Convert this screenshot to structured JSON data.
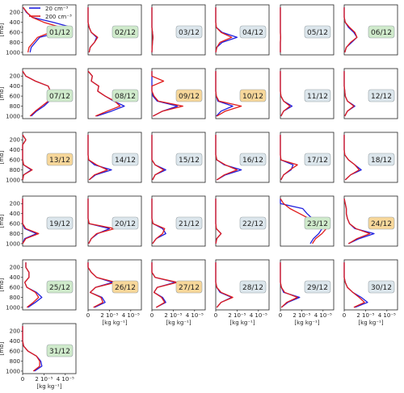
{
  "figure": {
    "legend": [
      {
        "label": "20 cm⁻³",
        "color": "#1f1fdf"
      },
      {
        "label": "200 cm⁻³",
        "color": "#e01c1c"
      }
    ],
    "ylabel": "[mb]",
    "xlabel": "[kg kg⁻¹]",
    "yticks": [
      "200",
      "400",
      "600",
      "800",
      "1000"
    ],
    "xticks": [
      "0",
      "2 10⁻⁵",
      "4 10⁻⁵"
    ]
  },
  "chart_data": {
    "type": "line",
    "xlabel": "[kg kg-1]",
    "ylabel": "[mb]",
    "xlim": [
      0,
      5e-05
    ],
    "ylim": [
      1050,
      50
    ],
    "yticks": [
      200,
      400,
      600,
      800,
      1000
    ],
    "xticks": [
      0,
      2e-05,
      4e-05
    ],
    "pressure_levels": [
      100,
      200,
      300,
      400,
      500,
      600,
      700,
      800,
      900,
      1000
    ],
    "series_names": [
      "20 cm-3",
      "200 cm-3"
    ],
    "badge_colors": {
      "green": "#cfeacb",
      "blue": "#dce6ec",
      "orange": "#f7d79a"
    },
    "panels": [
      {
        "date": "01/12",
        "badge": "green",
        "s20": [
          0.05,
          0.35,
          0.9,
          2.9,
          4.6,
          3.4,
          1.6,
          1.2,
          0.8,
          0.7
        ],
        "s200": [
          0.05,
          0.4,
          0.9,
          2.0,
          3.6,
          2.6,
          1.4,
          1.0,
          0.6,
          0.5
        ]
      },
      {
        "date": "02/12",
        "badge": "green",
        "s20": [
          0,
          0,
          0,
          0,
          0.1,
          0.3,
          0.8,
          0.6,
          0.2,
          0.1
        ],
        "s200": [
          0,
          0,
          0,
          0,
          0.1,
          0.3,
          0.9,
          0.6,
          0.2,
          0.1
        ]
      },
      {
        "date": "03/12",
        "badge": "blue",
        "s20": [
          0,
          0,
          0,
          0,
          0,
          0.05,
          0.1,
          0.05,
          0.02,
          0
        ],
        "s200": [
          0,
          0,
          0,
          0,
          0,
          0.05,
          0.1,
          0.05,
          0.02,
          0
        ]
      },
      {
        "date": "04/12",
        "badge": "blue",
        "s20": [
          0,
          0,
          0,
          0,
          0.05,
          0.6,
          2.0,
          0.6,
          0.1,
          0
        ],
        "s200": [
          0,
          0,
          0,
          0,
          0.05,
          0.5,
          1.5,
          0.4,
          0.1,
          0
        ]
      },
      {
        "date": "05/12",
        "badge": "blue",
        "s20": [
          0,
          0,
          0,
          0,
          0,
          0,
          0.02,
          0,
          0,
          0
        ],
        "s200": [
          0,
          0,
          0,
          0,
          0,
          0,
          0.02,
          0,
          0,
          0
        ]
      },
      {
        "date": "06/12",
        "badge": "green",
        "s20": [
          0,
          0,
          0,
          0.1,
          0.4,
          0.9,
          1.2,
          0.7,
          0.2,
          0.05
        ],
        "s200": [
          0,
          0,
          0,
          0.1,
          0.5,
          1.0,
          1.2,
          0.6,
          0.2,
          0.05
        ]
      },
      {
        "date": "07/12",
        "badge": "green",
        "s20": [
          0,
          0.3,
          1.2,
          2.4,
          2.6,
          2.4,
          2.5,
          2.0,
          1.3,
          0.8
        ],
        "s200": [
          0,
          0.3,
          1.2,
          2.4,
          2.6,
          2.4,
          2.4,
          1.8,
          1.2,
          0.7
        ]
      },
      {
        "date": "08/12",
        "badge": "green",
        "s20": [
          0,
          0.4,
          0.3,
          1.0,
          0.9,
          1.6,
          2.4,
          3.4,
          2.2,
          0.8
        ],
        "s200": [
          0,
          0.4,
          0.3,
          1.0,
          0.9,
          1.6,
          2.5,
          3.0,
          1.8,
          0.7
        ]
      },
      {
        "date": "09/12",
        "badge": "orange",
        "s20": [
          0,
          0,
          0,
          0,
          0,
          0.1,
          0.5,
          2.4,
          1.0,
          0.1
        ],
        "s200": [
          0,
          0,
          1.1,
          0,
          0,
          0.2,
          0.6,
          2.9,
          1.0,
          0.1
        ]
      },
      {
        "date": "10/12",
        "badge": "orange",
        "s20": [
          0,
          0,
          0,
          0,
          0,
          0.05,
          0.2,
          1.6,
          0.5,
          0.05
        ],
        "s200": [
          0,
          0,
          0,
          0,
          0,
          0.05,
          0.3,
          2.4,
          0.9,
          0.1
        ]
      },
      {
        "date": "11/12",
        "badge": "blue",
        "s20": [
          0,
          0,
          0,
          0,
          0,
          0.05,
          0.3,
          1.1,
          0.3,
          0.05
        ],
        "s200": [
          0,
          0,
          0,
          0,
          0,
          0.05,
          0.3,
          0.9,
          0.3,
          0.05
        ]
      },
      {
        "date": "12/12",
        "badge": "blue",
        "s20": [
          0,
          0,
          0,
          0,
          0.05,
          0.1,
          0.3,
          1.0,
          0.3,
          0.05
        ],
        "s200": [
          0,
          0,
          0,
          0,
          0.05,
          0.1,
          0.3,
          0.9,
          0.3,
          0.05
        ]
      },
      {
        "date": "13/12",
        "badge": "orange",
        "s20": [
          0,
          0.3,
          0,
          0,
          0,
          0,
          0.1,
          0.8,
          0.1,
          0
        ],
        "s200": [
          0,
          0.3,
          0,
          0,
          0,
          0,
          0.1,
          0.9,
          0.1,
          0
        ]
      },
      {
        "date": "14/12",
        "badge": "blue",
        "s20": [
          0,
          0,
          0,
          0,
          0,
          0.05,
          0.6,
          2.2,
          0.7,
          0.1
        ],
        "s200": [
          0,
          0,
          0,
          0,
          0,
          0.05,
          0.8,
          1.8,
          0.6,
          0.1
        ]
      },
      {
        "date": "15/12",
        "badge": "blue",
        "s20": [
          0,
          0,
          0,
          0,
          0,
          0,
          0.3,
          1.3,
          0.3,
          0.05
        ],
        "s200": [
          0,
          0,
          0,
          0,
          0,
          0,
          0.3,
          1.1,
          0.3,
          0.05
        ]
      },
      {
        "date": "16/12",
        "badge": "blue",
        "s20": [
          0,
          0,
          0,
          0,
          0,
          0.1,
          0.8,
          2.4,
          0.9,
          0.1
        ],
        "s200": [
          0,
          0,
          0,
          0,
          0,
          0.1,
          0.9,
          2.0,
          0.8,
          0.1
        ]
      },
      {
        "date": "17/12",
        "badge": "blue",
        "s20": [
          0,
          0,
          0,
          0,
          0,
          0.05,
          1.2,
          1.0,
          0.3,
          0.05
        ],
        "s200": [
          0,
          0,
          0,
          0,
          0,
          0.05,
          1.6,
          0.9,
          0.3,
          0.05
        ]
      },
      {
        "date": "18/12",
        "badge": "blue",
        "s20": [
          0,
          0,
          0,
          0,
          0.05,
          0.4,
          1.0,
          1.6,
          0.6,
          0.1
        ],
        "s200": [
          0,
          0,
          0,
          0,
          0.05,
          0.4,
          1.0,
          1.4,
          0.6,
          0.1
        ]
      },
      {
        "date": "19/12",
        "badge": "blue",
        "s20": [
          0,
          0,
          0,
          0,
          0,
          0,
          0.2,
          1.3,
          0.2,
          0
        ],
        "s200": [
          0,
          0,
          0,
          0,
          0,
          0,
          0.3,
          1.5,
          0.3,
          0
        ]
      },
      {
        "date": "20/12",
        "badge": "blue",
        "s20": [
          0,
          0,
          0,
          0,
          0,
          0.1,
          2.0,
          0.9,
          0.3,
          0.05
        ],
        "s200": [
          0,
          0,
          0,
          0,
          0,
          0.1,
          2.5,
          0.8,
          0.3,
          0.05
        ]
      },
      {
        "date": "21/12",
        "badge": "blue",
        "s20": [
          0,
          0,
          0,
          0,
          0,
          0.1,
          1.0,
          1.3,
          0.4,
          0.05
        ],
        "s200": [
          0,
          0,
          0,
          0,
          0,
          0.1,
          1.2,
          1.0,
          0.4,
          0.05
        ]
      },
      {
        "date": "22/12",
        "badge": "blue",
        "s20": [
          0,
          0,
          0,
          0,
          0,
          0,
          0.05,
          0.5,
          0.1,
          0
        ],
        "s200": [
          0,
          0,
          0,
          0,
          0,
          0,
          0.05,
          0.5,
          0.1,
          0
        ]
      },
      {
        "date": "23/12",
        "badge": "green",
        "s20": [
          0,
          0,
          2.1,
          2.5,
          3.0,
          3.2,
          3.9,
          3.6,
          3.1,
          2.8
        ],
        "s200": [
          0,
          0.3,
          0.9,
          1.8,
          2.7,
          3.6,
          4.3,
          3.9,
          3.3,
          3.0
        ]
      },
      {
        "date": "24/12",
        "badge": "orange",
        "s20": [
          0,
          0.1,
          0.2,
          0.2,
          0.3,
          0.5,
          1.0,
          2.8,
          1.4,
          0.4
        ],
        "s200": [
          0,
          0.1,
          0.2,
          0.2,
          0.3,
          0.5,
          1.1,
          2.4,
          1.2,
          0.4
        ]
      },
      {
        "date": "25/12",
        "badge": "green",
        "s20": [
          0.3,
          0.3,
          0.6,
          0.6,
          0.2,
          0.4,
          1.3,
          1.8,
          1.2,
          0.5
        ],
        "s200": [
          0.3,
          0.3,
          0.6,
          0.6,
          0.2,
          0.4,
          1.2,
          1.5,
          1.0,
          0.4
        ]
      },
      {
        "date": "26/12",
        "badge": "orange",
        "s20": [
          0,
          0,
          0.3,
          0.8,
          2.3,
          0.7,
          0.2,
          1.3,
          1.6,
          0.6
        ],
        "s200": [
          0,
          0,
          0.3,
          0.8,
          2.6,
          0.7,
          0.2,
          1.2,
          1.4,
          0.5
        ]
      },
      {
        "date": "27/12",
        "badge": "orange",
        "s20": [
          0,
          0,
          0,
          0.3,
          2.2,
          0.5,
          0.2,
          1.0,
          1.3,
          0.4
        ],
        "s200": [
          0,
          0,
          0,
          0.3,
          2.4,
          0.5,
          0.2,
          0.9,
          1.2,
          0.4
        ]
      },
      {
        "date": "28/12",
        "badge": "blue",
        "s20": [
          0,
          0,
          0,
          0,
          0,
          0.1,
          0.4,
          1.5,
          0.5,
          0.1
        ],
        "s200": [
          0,
          0,
          0,
          0,
          0,
          0.1,
          0.5,
          1.6,
          0.5,
          0.1
        ]
      },
      {
        "date": "29/12",
        "badge": "blue",
        "s20": [
          0,
          0,
          0,
          0,
          0,
          0.1,
          0.3,
          1.8,
          0.7,
          0.1
        ],
        "s200": [
          0,
          0,
          0,
          0,
          0,
          0.1,
          0.4,
          1.6,
          0.6,
          0.1
        ]
      },
      {
        "date": "30/12",
        "badge": "blue",
        "s20": [
          0,
          0,
          0,
          0,
          0.1,
          0.3,
          0.8,
          1.6,
          2.2,
          1.0
        ],
        "s200": [
          0,
          0,
          0,
          0,
          0.1,
          0.3,
          0.8,
          1.4,
          1.9,
          0.9
        ]
      },
      {
        "date": "31/12",
        "badge": "green",
        "s20": [
          0,
          0,
          0,
          0,
          0.1,
          0.5,
          1.3,
          1.7,
          1.8,
          1.1
        ],
        "s200": [
          0,
          0,
          0,
          0,
          0.1,
          0.5,
          1.3,
          1.6,
          1.6,
          1.0
        ]
      }
    ]
  }
}
